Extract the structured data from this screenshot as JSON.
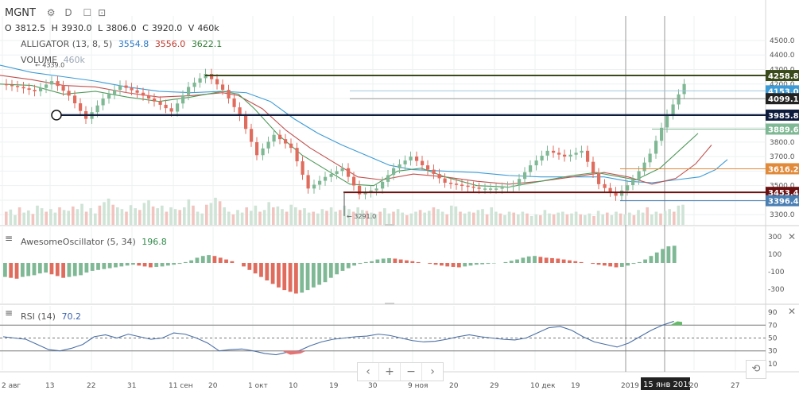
{
  "header": {
    "symbol": "MGNT",
    "interval": "D",
    "ohlcv": {
      "o_label": "O",
      "o": "3812.5",
      "h_label": "H",
      "h": "3930.0",
      "l_label": "L",
      "l": "3806.0",
      "c_label": "C",
      "c": "3920.0",
      "v_label": "V",
      "v": "460k"
    },
    "alligator": {
      "name": "ALLIGATOR (13, 8, 5)",
      "v1": "3554.8",
      "v2": "3556.0",
      "v3": "3622.1"
    },
    "volume": {
      "name": "VOLUME",
      "value": "460k"
    }
  },
  "icons": {
    "settings": "gear-icon",
    "compare": "compare-icon",
    "fullscreen": "fullscreen-icon",
    "close": "close-icon",
    "reset": "reset-icon"
  },
  "toolbar": {
    "prev": "‹",
    "zoom_in": "+",
    "zoom_out": "−",
    "next": "›",
    "reset": "⟲"
  },
  "colors": {
    "up": "#7fb894",
    "down": "#e06c5e",
    "jaw": "#3d9bd6",
    "teeth": "#c0504d",
    "lips": "#4f9a5a",
    "hline_olive": "#3b4a1a",
    "hline_navy": "#0d1b3d",
    "hline_maroon": "#6b1010",
    "ao_up": "#7fb894",
    "ao_down": "#e06c5e",
    "rsi_line": "#4a6fa5"
  },
  "chart_data": {
    "type": "candlestick",
    "ohlc_points": [
      [
        13,
        1
      ],
      [
        35,
        1
      ],
      [
        58,
        1
      ],
      [
        80,
        1
      ],
      [
        102,
        0
      ],
      [
        124,
        1
      ],
      [
        146,
        1
      ],
      [
        168,
        0
      ],
      [
        190,
        0
      ],
      [
        212,
        0
      ],
      [
        233,
        1
      ],
      [
        255,
        1
      ],
      [
        276,
        1
      ],
      [
        297,
        0
      ],
      [
        318,
        0
      ],
      [
        340,
        0
      ],
      [
        362,
        0
      ],
      [
        384,
        1
      ],
      [
        406,
        1
      ],
      [
        426,
        0
      ],
      [
        448,
        0
      ],
      [
        470,
        1
      ],
      [
        492,
        1
      ],
      [
        514,
        1
      ],
      [
        536,
        0
      ],
      [
        558,
        0
      ],
      [
        580,
        0
      ],
      [
        602,
        0
      ],
      [
        624,
        0
      ],
      [
        646,
        1
      ],
      [
        668,
        1
      ],
      [
        690,
        1
      ],
      [
        712,
        1
      ],
      [
        734,
        0
      ],
      [
        756,
        0
      ],
      [
        778,
        1
      ],
      [
        800,
        1
      ],
      [
        822,
        1
      ],
      [
        844,
        1
      ],
      [
        858,
        0
      ]
    ],
    "closes": [
      4180,
      4150,
      4220,
      4120,
      3960,
      4100,
      4190,
      4140,
      4080,
      4010,
      4180,
      4270,
      4160,
      3980,
      3710,
      3850,
      3760,
      3480,
      3560,
      3620,
      3440,
      3480,
      3620,
      3700,
      3610,
      3520,
      3500,
      3480,
      3480,
      3500,
      3640,
      3740,
      3700,
      3740,
      3510,
      3430,
      3540,
      3720,
      3990,
      4200
    ],
    "price_axis": {
      "ticks": [
        "4500.0",
        "4400.0",
        "4300.0",
        "4200.0",
        "4100.0",
        "4000.0",
        "3900.0",
        "3800.0",
        "3700.0",
        "3600.0",
        "3500.0",
        "3400.0",
        "3300.0"
      ]
    },
    "price_labels": [
      {
        "text": "4258.8",
        "bg": "#3b4a1a"
      },
      {
        "text": "4153.0",
        "bg": "#3d9bd6"
      },
      {
        "text": "4099.1",
        "bg": "#222222"
      },
      {
        "text": "3985.8",
        "bg": "#0d1b3d"
      },
      {
        "text": "3889.6",
        "bg": "#7fb894"
      },
      {
        "text": "3616.2",
        "bg": "#e08a3a"
      },
      {
        "text": "3453.4",
        "bg": "#6b1010"
      },
      {
        "text": "3396.4",
        "bg": "#4a7fb3"
      }
    ],
    "horizontal_levels": [
      4258.8,
      3985.8,
      3453.4
    ],
    "annotations": [
      {
        "text": "4339.0"
      },
      {
        "text": "3291.0"
      }
    ],
    "x_ticks": [
      "2 авг",
      "13",
      "22",
      "31",
      "11 сен",
      "20",
      "1 окт",
      "10",
      "19",
      "30",
      "9 ноя",
      "20",
      "29",
      "10 дек",
      "19",
      "2019",
      "15 янв 2019",
      "20",
      "27"
    ],
    "ao": {
      "name": "AwesomeOscillator (5, 34)",
      "value": "196.8",
      "ticks": [
        "300",
        "100",
        "-100",
        "-300"
      ]
    },
    "rsi": {
      "name": "RSI (14)",
      "value": "70.2",
      "ticks": [
        "90",
        "70",
        "50",
        "30",
        "10"
      ],
      "levels": [
        70,
        50,
        30
      ]
    }
  }
}
